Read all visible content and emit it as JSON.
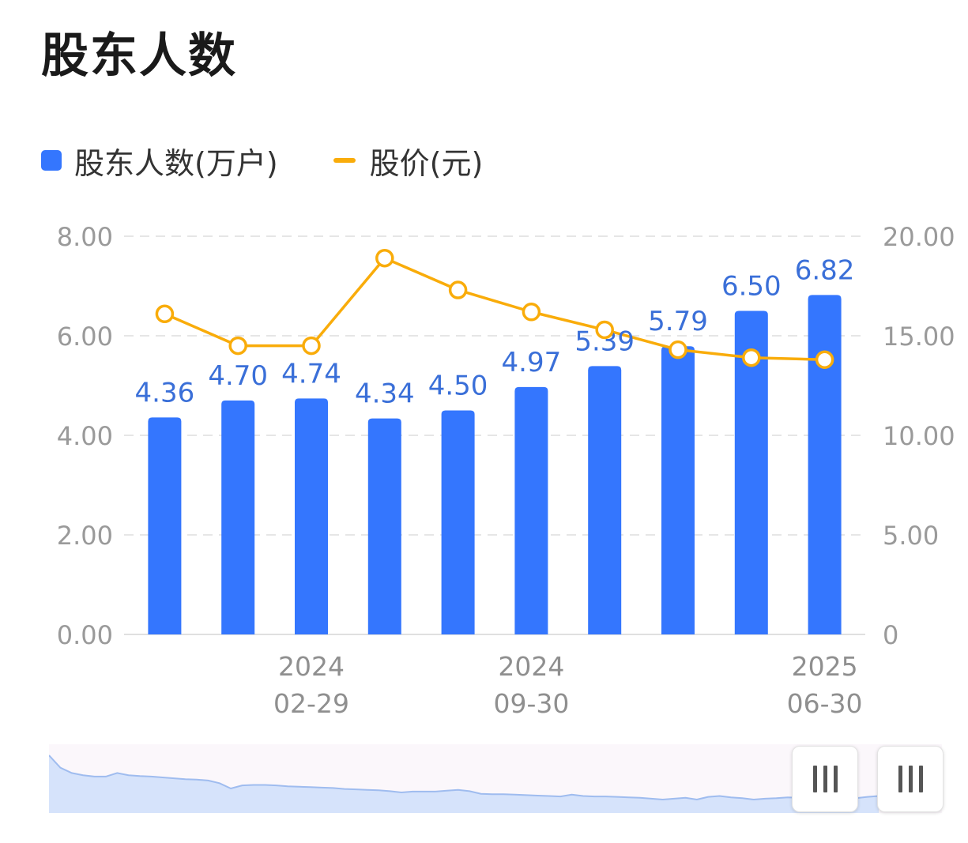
{
  "page": {
    "title": "股东人数"
  },
  "legend": {
    "holders_label": "股东人数(万户)",
    "price_label": "股价(元)"
  },
  "colors": {
    "bar": "#3476fe",
    "line": "#f9ac0a",
    "label": "#3a6fd8",
    "axis": "#9a9a9a",
    "grid": "#e6e6e6"
  },
  "chart_data": {
    "type": "bar+line",
    "series": [
      {
        "name": "股东人数(万户)",
        "kind": "bar",
        "axis": "left",
        "values": [
          4.36,
          4.7,
          4.74,
          4.34,
          4.5,
          4.97,
          5.39,
          5.79,
          6.5,
          6.82
        ]
      },
      {
        "name": "股价(元)",
        "kind": "line",
        "axis": "right",
        "values": [
          16.1,
          14.5,
          14.5,
          18.9,
          17.3,
          16.2,
          15.3,
          14.3,
          13.9,
          13.8
        ]
      }
    ],
    "bar_labels": [
      "4.36",
      "4.70",
      "4.74",
      "4.34",
      "4.50",
      "4.97",
      "5.39",
      "5.79",
      "6.50",
      "6.82"
    ],
    "left_axis": {
      "ticks": [
        "0.00",
        "2.00",
        "4.00",
        "6.00",
        "8.00"
      ],
      "range": [
        0,
        8
      ]
    },
    "right_axis": {
      "ticks": [
        "0",
        "5.00",
        "10.00",
        "15.00",
        "20.00"
      ],
      "range": [
        0,
        20
      ]
    },
    "x_ticks": [
      {
        "index": 2,
        "year": "2024",
        "date": "02-29"
      },
      {
        "index": 5,
        "year": "2024",
        "date": "09-30"
      },
      {
        "index": 9,
        "year": "2025",
        "date": "06-30"
      }
    ],
    "grid": true,
    "legend_position": "top-left",
    "overview_series": [
      1.0,
      0.72,
      0.6,
      0.55,
      0.52,
      0.52,
      0.6,
      0.55,
      0.53,
      0.52,
      0.5,
      0.48,
      0.46,
      0.45,
      0.43,
      0.37,
      0.25,
      0.32,
      0.33,
      0.33,
      0.32,
      0.3,
      0.29,
      0.28,
      0.27,
      0.26,
      0.24,
      0.23,
      0.22,
      0.21,
      0.19,
      0.16,
      0.18,
      0.18,
      0.18,
      0.2,
      0.22,
      0.19,
      0.13,
      0.12,
      0.12,
      0.11,
      0.1,
      0.09,
      0.08,
      0.07,
      0.11,
      0.08,
      0.07,
      0.07,
      0.06,
      0.05,
      0.04,
      0.02,
      0.0,
      0.02,
      0.04,
      0.0,
      0.06,
      0.08,
      0.05,
      0.03,
      0.0,
      0.02,
      0.03,
      0.05,
      0.04,
      0.03,
      0.01,
      0.0,
      0.02,
      0.03,
      0.06,
      0.08
    ]
  }
}
